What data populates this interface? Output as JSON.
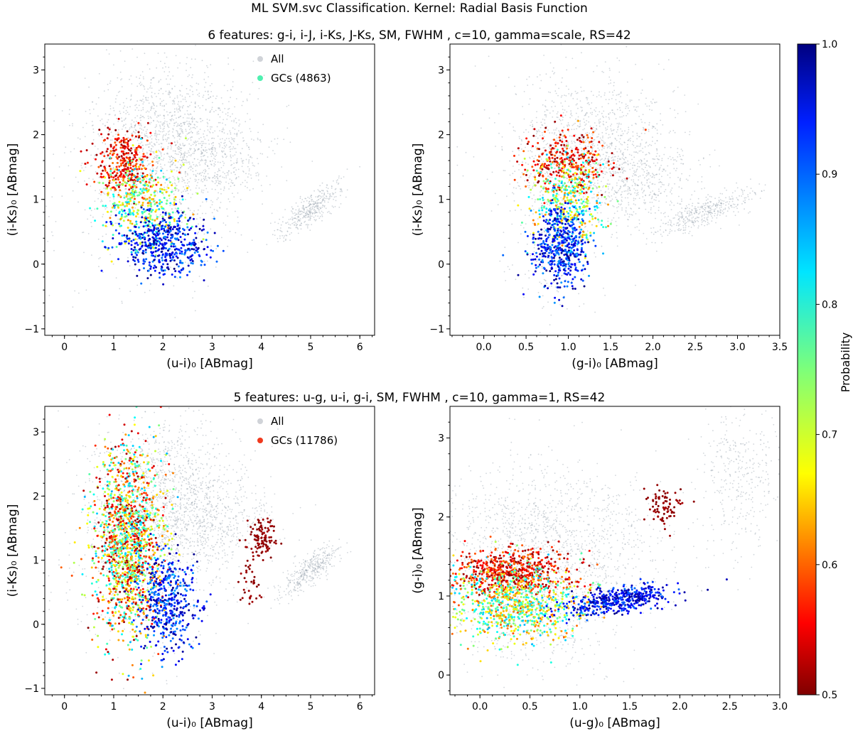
{
  "suptitle": "ML SVM.svc Classification. Kernel: Radial Basis Function",
  "row_titles": [
    "6 features: g-i, i-J, i-Ks, J-Ks, SM, FWHM , c=10, gamma=scale, RS=42",
    "5 features: u-g, u-i, g-i, SM, FWHM , c=10, gamma=1, RS=42"
  ],
  "colorbar": {
    "label": "Probability",
    "min": 0.5,
    "max": 1.0,
    "ticks": [
      "0.5",
      "0.6",
      "0.7",
      "0.8",
      "0.9",
      "1.0"
    ],
    "colormap": "jet_r"
  },
  "colors": {
    "all_points": "#9aa3b0",
    "gc_legend_top": "#4ff0b0",
    "gc_legend_bottom": "#f03a1e"
  },
  "chart_data": [
    {
      "type": "scatter",
      "panel": "top-left",
      "xlabel": "(u-i)₀ [ABmag]",
      "ylabel": "(i-Ks)₀ [ABmag]",
      "xlim": [
        -0.4,
        6.3
      ],
      "ylim": [
        -1.1,
        3.4
      ],
      "xticks": [
        "0",
        "1",
        "2",
        "3",
        "4",
        "5",
        "6"
      ],
      "yticks": [
        "−1",
        "0",
        "1",
        "2",
        "3"
      ],
      "legend": {
        "location": "top-center",
        "entries": [
          "All",
          "GCs (4863)"
        ]
      },
      "background_clusters": [
        {
          "cx": 2.2,
          "cy": 1.9,
          "sx": 0.75,
          "sy": 0.6,
          "n": 1300
        },
        {
          "cx": 1.5,
          "cy": 1.2,
          "sx": 0.9,
          "sy": 0.9,
          "n": 450
        },
        {
          "cx": 5.0,
          "cy": 0.85,
          "sx": 0.3,
          "sy": 0.2,
          "n": 380,
          "rho": 0.8
        },
        {
          "cx": 3.2,
          "cy": 1.6,
          "sx": 0.6,
          "sy": 0.3,
          "n": 250
        }
      ],
      "gc_clusters": [
        {
          "cx": 1.2,
          "cy": 1.55,
          "sx": 0.3,
          "sy": 0.25,
          "n": 300,
          "pmin": 0.5,
          "pmax": 0.62
        },
        {
          "cx": 1.55,
          "cy": 0.95,
          "sx": 0.4,
          "sy": 0.35,
          "n": 380,
          "pmin": 0.62,
          "pmax": 0.85
        },
        {
          "cx": 2.0,
          "cy": 0.3,
          "sx": 0.45,
          "sy": 0.25,
          "n": 480,
          "pmin": 0.86,
          "pmax": 1.0
        }
      ]
    },
    {
      "type": "scatter",
      "panel": "top-right",
      "xlabel": "(g-i)₀ [ABmag]",
      "ylabel": "(i-Ks)₀ [ABmag]",
      "xlim": [
        -0.4,
        3.5
      ],
      "ylim": [
        -1.1,
        3.4
      ],
      "xticks": [
        "0.0",
        "0.5",
        "1.0",
        "1.5",
        "2.0",
        "2.5",
        "3.0",
        "3.5"
      ],
      "yticks": [
        "−1",
        "0",
        "1",
        "2",
        "3"
      ],
      "background_clusters": [
        {
          "cx": 1.25,
          "cy": 1.75,
          "sx": 0.5,
          "sy": 0.6,
          "n": 1300
        },
        {
          "cx": 2.6,
          "cy": 0.8,
          "sx": 0.3,
          "sy": 0.18,
          "n": 380,
          "rho": 0.8
        },
        {
          "cx": 1.9,
          "cy": 1.3,
          "sx": 0.4,
          "sy": 0.3,
          "n": 300
        },
        {
          "cx": 0.8,
          "cy": 0.2,
          "sx": 0.25,
          "sy": 0.5,
          "n": 200
        }
      ],
      "gc_clusters": [
        {
          "cx": 0.95,
          "cy": 1.55,
          "sx": 0.25,
          "sy": 0.25,
          "n": 300,
          "pmin": 0.5,
          "pmax": 0.62
        },
        {
          "cx": 1.0,
          "cy": 0.95,
          "sx": 0.22,
          "sy": 0.35,
          "n": 380,
          "pmin": 0.62,
          "pmax": 0.85
        },
        {
          "cx": 0.9,
          "cy": 0.25,
          "sx": 0.15,
          "sy": 0.3,
          "n": 480,
          "pmin": 0.86,
          "pmax": 1.0
        }
      ]
    },
    {
      "type": "scatter",
      "panel": "bottom-left",
      "xlabel": "(u-i)₀ [ABmag]",
      "ylabel": "(i-Ks)₀ [ABmag]",
      "xlim": [
        -0.4,
        6.3
      ],
      "ylim": [
        -1.1,
        3.4
      ],
      "xticks": [
        "0",
        "1",
        "2",
        "3",
        "4",
        "5",
        "6"
      ],
      "yticks": [
        "−1",
        "0",
        "1",
        "2",
        "3"
      ],
      "legend": {
        "location": "top-center",
        "entries": [
          "All",
          "GCs (11786)"
        ]
      },
      "background_clusters": [
        {
          "cx": 2.2,
          "cy": 1.9,
          "sx": 0.75,
          "sy": 0.6,
          "n": 1300
        },
        {
          "cx": 1.5,
          "cy": 1.2,
          "sx": 0.9,
          "sy": 0.9,
          "n": 450
        },
        {
          "cx": 5.0,
          "cy": 0.85,
          "sx": 0.3,
          "sy": 0.2,
          "n": 380,
          "rho": 0.8
        },
        {
          "cx": 3.2,
          "cy": 1.6,
          "sx": 0.6,
          "sy": 0.3,
          "n": 250
        }
      ],
      "gc_clusters": [
        {
          "cx": 1.3,
          "cy": 1.3,
          "sx": 0.35,
          "sy": 0.75,
          "n": 1500,
          "pmin": 0.5,
          "pmax": 0.85
        },
        {
          "cx": 2.1,
          "cy": 0.35,
          "sx": 0.3,
          "sy": 0.4,
          "n": 450,
          "pmin": 0.86,
          "pmax": 1.0
        },
        {
          "cx": 4.0,
          "cy": 1.35,
          "sx": 0.15,
          "sy": 0.15,
          "n": 100,
          "pmin": 0.5,
          "pmax": 0.52
        },
        {
          "cx": 3.8,
          "cy": 0.7,
          "sx": 0.1,
          "sy": 0.25,
          "n": 40,
          "pmin": 0.5,
          "pmax": 0.52
        }
      ]
    },
    {
      "type": "scatter",
      "panel": "bottom-right",
      "xlabel": "(u-g)₀ [ABmag]",
      "ylabel": "(g-i)₀ [ABmag]",
      "xlim": [
        -0.3,
        3.0
      ],
      "ylim": [
        -0.25,
        3.4
      ],
      "xticks": [
        "0.0",
        "0.5",
        "1.0",
        "1.5",
        "2.0",
        "2.5",
        "3.0"
      ],
      "yticks": [
        "0",
        "1",
        "2",
        "3"
      ],
      "background_clusters": [
        {
          "cx": 0.7,
          "cy": 1.6,
          "sx": 0.55,
          "sy": 0.55,
          "n": 1500
        },
        {
          "cx": 2.6,
          "cy": 2.5,
          "sx": 0.2,
          "sy": 0.5,
          "n": 350
        },
        {
          "cx": 0.5,
          "cy": 0.7,
          "sx": 0.4,
          "sy": 0.35,
          "n": 300
        }
      ],
      "gc_clusters": [
        {
          "cx": 0.3,
          "cy": 1.3,
          "sx": 0.3,
          "sy": 0.15,
          "n": 600,
          "pmin": 0.5,
          "pmax": 0.62
        },
        {
          "cx": 0.35,
          "cy": 0.9,
          "sx": 0.35,
          "sy": 0.25,
          "n": 800,
          "pmin": 0.6,
          "pmax": 0.85
        },
        {
          "cx": 1.4,
          "cy": 0.95,
          "sx": 0.28,
          "sy": 0.1,
          "n": 450,
          "pmin": 0.88,
          "pmax": 1.0,
          "rho": 0.6
        },
        {
          "cx": 1.85,
          "cy": 2.15,
          "sx": 0.1,
          "sy": 0.12,
          "n": 80,
          "pmin": 0.5,
          "pmax": 0.52
        }
      ]
    }
  ]
}
